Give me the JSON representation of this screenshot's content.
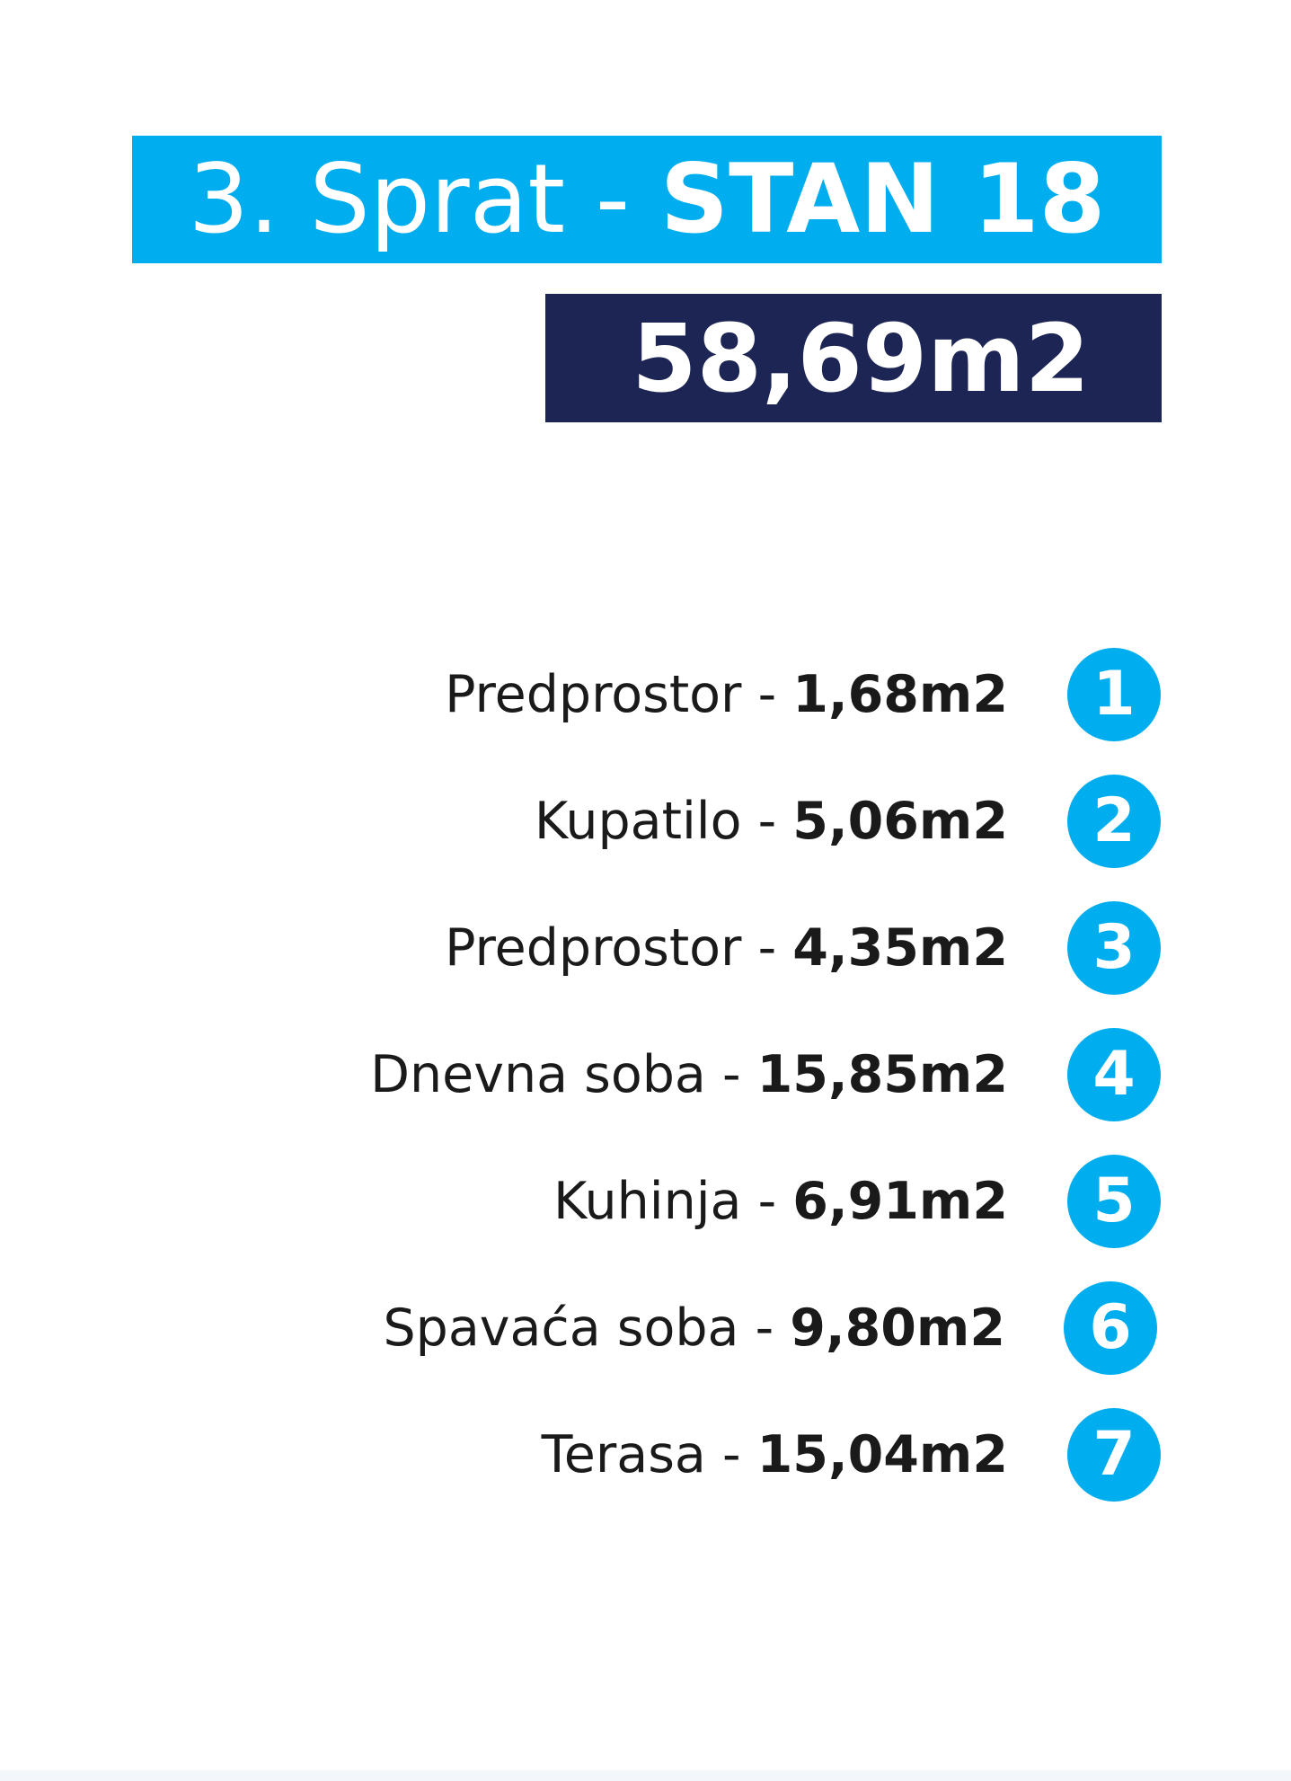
{
  "header": {
    "floor_label": "3. Sprat - ",
    "unit_label": "STAN 18",
    "total_area": "58,69m2"
  },
  "colors": {
    "accent": "#00aeef",
    "dark": "#1d2554",
    "text": "#1a1a1a"
  },
  "rooms": [
    {
      "number": "1",
      "name": "Predprostor",
      "area": "1,68m2"
    },
    {
      "number": "2",
      "name": "Kupatilo",
      "area": "5,06m2"
    },
    {
      "number": "3",
      "name": "Predprostor",
      "area": "4,35m2"
    },
    {
      "number": "4",
      "name": "Dnevna soba",
      "area": "15,85m2"
    },
    {
      "number": "5",
      "name": "Kuhinja",
      "area": "6,91m2"
    },
    {
      "number": "6",
      "name": "Spavaća soba",
      "area": "9,80m2"
    },
    {
      "number": "7",
      "name": "Terasa",
      "area": "15,04m2"
    }
  ]
}
